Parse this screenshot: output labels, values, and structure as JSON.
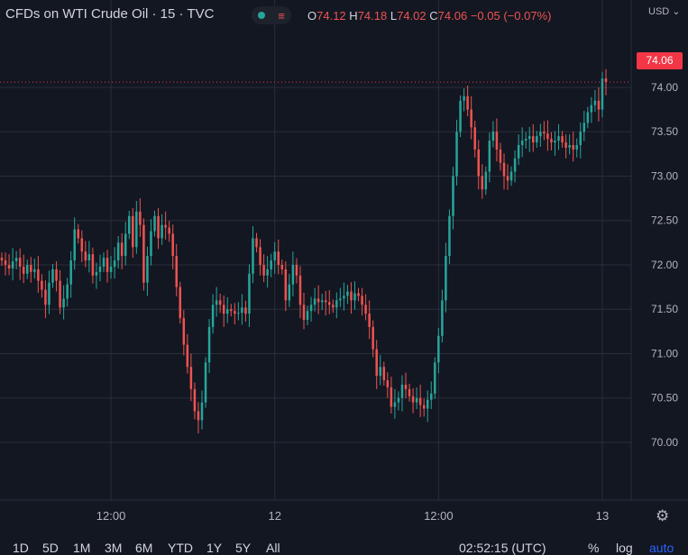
{
  "header": {
    "symbol_title": "CFDs on WTI Crude Oil · 15 · TVC",
    "open_label": "O",
    "open_value": "74.12",
    "high_label": "H",
    "high_value": "74.18",
    "low_label": "L",
    "low_value": "74.02",
    "close_label": "C",
    "close_value": "74.06",
    "change": "−0.05 (−0.07%)",
    "currency": "USD",
    "currency_chevron": "⌄"
  },
  "last_price_label": "74.06",
  "icons": {
    "pill_left": "green-dot-icon",
    "pill_right": "menu-lines-icon",
    "settings": "gear-icon"
  },
  "colors": {
    "up": "#26a69a",
    "down": "#ef5350",
    "background": "#131722",
    "grid": "#2a2e39",
    "price_tag": "#f23645",
    "accent": "#2962ff"
  },
  "timeframes": [
    "1D",
    "5D",
    "1M",
    "3M",
    "6M",
    "YTD",
    "1Y",
    "5Y",
    "All"
  ],
  "footer": {
    "clock": "02:52:15 (UTC)",
    "percent": "%",
    "log": "log",
    "auto": "auto"
  },
  "chart_data": {
    "type": "candlestick",
    "y_ticks": [
      "74.00",
      "73.50",
      "73.00",
      "72.50",
      "72.00",
      "71.50",
      "71.00",
      "70.50",
      "70.00"
    ],
    "y_tick_values": [
      74.0,
      73.5,
      73.0,
      72.5,
      72.0,
      71.5,
      71.0,
      70.5,
      70.0
    ],
    "x_ticks": [
      "12:00",
      "12",
      "12:00",
      "13"
    ],
    "x_tick_index": [
      30,
      75,
      120,
      165
    ],
    "ylim": [
      69.35,
      74.68
    ],
    "grid": true,
    "last_price": 74.06,
    "close": [
      72.05,
      72.0,
      71.96,
      72.04,
      72.08,
      71.98,
      71.9,
      72.0,
      71.92,
      71.95,
      71.82,
      71.72,
      71.55,
      71.8,
      71.95,
      71.82,
      71.52,
      71.62,
      71.78,
      72.05,
      72.4,
      72.3,
      72.15,
      72.05,
      72.12,
      71.88,
      71.92,
      71.98,
      72.08,
      71.92,
      71.98,
      72.05,
      72.25,
      72.1,
      72.35,
      72.55,
      72.2,
      72.6,
      72.45,
      71.8,
      72.1,
      72.38,
      72.55,
      72.3,
      72.45,
      72.42,
      72.35,
      72.1,
      71.75,
      71.4,
      71.1,
      70.85,
      70.6,
      70.35,
      70.25,
      70.45,
      70.9,
      71.3,
      71.55,
      71.6,
      71.55,
      71.45,
      71.5,
      71.48,
      71.45,
      71.46,
      71.52,
      71.45,
      71.9,
      72.3,
      72.2,
      72.0,
      71.88,
      71.95,
      72.05,
      72.15,
      72.0,
      71.95,
      71.6,
      71.78,
      72.0,
      71.88,
      71.55,
      71.38,
      71.48,
      71.55,
      71.62,
      71.58,
      71.6,
      71.58,
      71.55,
      71.52,
      71.6,
      71.62,
      71.65,
      71.7,
      71.6,
      71.68,
      71.65,
      71.55,
      71.45,
      71.3,
      71.05,
      70.75,
      70.85,
      70.7,
      70.62,
      70.4,
      70.45,
      70.5,
      70.65,
      70.6,
      70.52,
      70.45,
      70.5,
      70.42,
      70.38,
      70.48,
      70.55,
      70.9,
      71.2,
      71.6,
      72.1,
      72.55,
      73.0,
      73.5,
      73.85,
      73.9,
      73.75,
      73.55,
      73.3,
      73.0,
      72.85,
      73.05,
      73.4,
      73.5,
      73.3,
      73.15,
      73.0,
      72.95,
      73.05,
      73.2,
      73.35,
      73.4,
      73.42,
      73.45,
      73.38,
      73.45,
      73.5,
      73.48,
      73.42,
      73.38,
      73.4,
      73.45,
      73.38,
      73.32,
      73.35,
      73.3,
      73.35,
      73.5,
      73.6,
      73.72,
      73.8,
      73.85,
      73.75,
      74.1,
      74.06
    ]
  }
}
